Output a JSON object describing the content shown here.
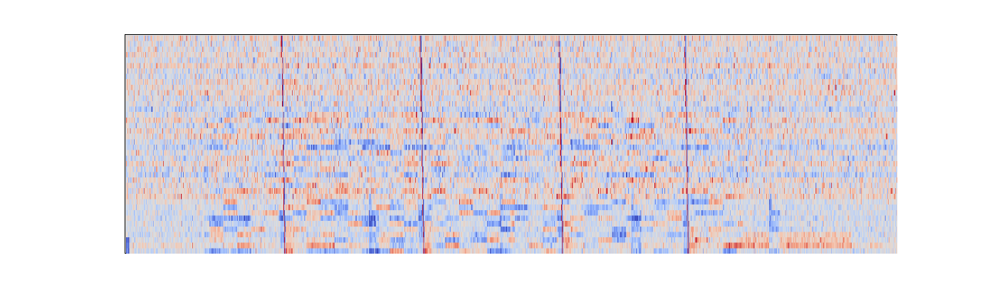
{
  "chart_data": {
    "type": "heatmap",
    "title": "",
    "xlabel": "",
    "ylabel": "",
    "axes_visible": false,
    "colormap": "coolwarm",
    "colormap_stops": [
      "#3b4cc0",
      "#7396f5",
      "#b1cbfc",
      "#dcdddd",
      "#f5c4ad",
      "#ee8468",
      "#b40426"
    ],
    "value_range": [
      -1,
      1
    ],
    "n_rows": 40,
    "n_cols": 1000,
    "onset_columns": [
      205,
      385,
      565,
      728
    ],
    "minor_event_columns": [
      316,
      486,
      656,
      835
    ],
    "band_rows": {
      "low_strong": [
        0,
        10
      ],
      "mid_structured": [
        10,
        26
      ],
      "high_noisy": [
        26,
        40
      ]
    },
    "sustained_segment": {
      "row_range": [
        1,
        3
      ],
      "col_range": [
        800,
        940
      ],
      "value": 0.35
    },
    "noise_amplitude": 0.25
  }
}
